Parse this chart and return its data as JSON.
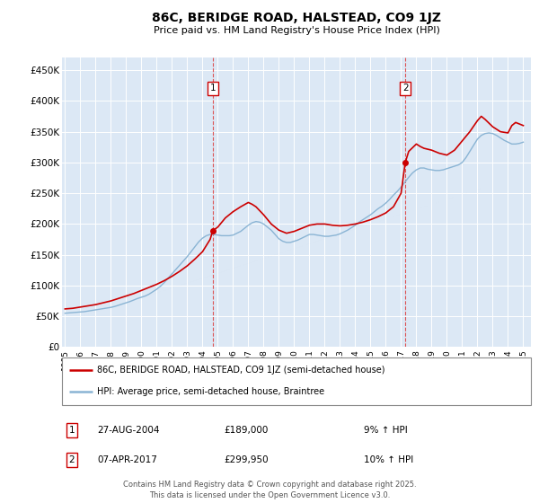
{
  "title": "86C, BERIDGE ROAD, HALSTEAD, CO9 1JZ",
  "subtitle": "Price paid vs. HM Land Registry's House Price Index (HPI)",
  "legend_line1": "86C, BERIDGE ROAD, HALSTEAD, CO9 1JZ (semi-detached house)",
  "legend_line2": "HPI: Average price, semi-detached house, Braintree",
  "annotation1": {
    "num": "1",
    "date": "27-AUG-2004",
    "price": "£189,000",
    "hpi": "9% ↑ HPI",
    "x_year": 2004.67
  },
  "annotation2": {
    "num": "2",
    "date": "07-APR-2017",
    "price": "£299,950",
    "hpi": "10% ↑ HPI",
    "x_year": 2017.27
  },
  "footer": "Contains HM Land Registry data © Crown copyright and database right 2025.\nThis data is licensed under the Open Government Licence v3.0.",
  "price_color": "#cc0000",
  "hpi_color": "#8ab4d4",
  "background_color": "#dce8f5",
  "ylim": [
    0,
    470000
  ],
  "xlim_start": 1994.8,
  "xlim_end": 2025.5,
  "yticks": [
    0,
    50000,
    100000,
    150000,
    200000,
    250000,
    300000,
    350000,
    400000,
    450000
  ],
  "xticks": [
    1995,
    1996,
    1997,
    1998,
    1999,
    2000,
    2001,
    2002,
    2003,
    2004,
    2005,
    2006,
    2007,
    2008,
    2009,
    2010,
    2011,
    2012,
    2013,
    2014,
    2015,
    2016,
    2017,
    2018,
    2019,
    2020,
    2021,
    2022,
    2023,
    2024,
    2025
  ],
  "hpi_x": [
    1995.0,
    1995.25,
    1995.5,
    1995.75,
    1996.0,
    1996.25,
    1996.5,
    1996.75,
    1997.0,
    1997.25,
    1997.5,
    1997.75,
    1998.0,
    1998.25,
    1998.5,
    1998.75,
    1999.0,
    1999.25,
    1999.5,
    1999.75,
    2000.0,
    2000.25,
    2000.5,
    2000.75,
    2001.0,
    2001.25,
    2001.5,
    2001.75,
    2002.0,
    2002.25,
    2002.5,
    2002.75,
    2003.0,
    2003.25,
    2003.5,
    2003.75,
    2004.0,
    2004.25,
    2004.5,
    2004.75,
    2005.0,
    2005.25,
    2005.5,
    2005.75,
    2006.0,
    2006.25,
    2006.5,
    2006.75,
    2007.0,
    2007.25,
    2007.5,
    2007.75,
    2008.0,
    2008.25,
    2008.5,
    2008.75,
    2009.0,
    2009.25,
    2009.5,
    2009.75,
    2010.0,
    2010.25,
    2010.5,
    2010.75,
    2011.0,
    2011.25,
    2011.5,
    2011.75,
    2012.0,
    2012.25,
    2012.5,
    2012.75,
    2013.0,
    2013.25,
    2013.5,
    2013.75,
    2014.0,
    2014.25,
    2014.5,
    2014.75,
    2015.0,
    2015.25,
    2015.5,
    2015.75,
    2016.0,
    2016.25,
    2016.5,
    2016.75,
    2017.0,
    2017.25,
    2017.5,
    2017.75,
    2018.0,
    2018.25,
    2018.5,
    2018.75,
    2019.0,
    2019.25,
    2019.5,
    2019.75,
    2020.0,
    2020.25,
    2020.5,
    2020.75,
    2021.0,
    2021.25,
    2021.5,
    2021.75,
    2022.0,
    2022.25,
    2022.5,
    2022.75,
    2023.0,
    2023.25,
    2023.5,
    2023.75,
    2024.0,
    2024.25,
    2024.5,
    2024.75,
    2025.0
  ],
  "hpi_y": [
    55000,
    55500,
    56000,
    56500,
    57000,
    57500,
    58500,
    59500,
    60500,
    61500,
    62500,
    63500,
    64500,
    66000,
    68000,
    70000,
    72000,
    74000,
    76500,
    79000,
    81000,
    83000,
    86000,
    90000,
    94000,
    99000,
    105000,
    112000,
    119000,
    126000,
    133000,
    140000,
    147000,
    155000,
    163000,
    171000,
    177000,
    181000,
    183000,
    183000,
    182000,
    181000,
    181000,
    181000,
    182000,
    185000,
    188000,
    193000,
    198000,
    202000,
    204000,
    203000,
    200000,
    195000,
    190000,
    183000,
    176000,
    172000,
    170000,
    170000,
    172000,
    174000,
    177000,
    180000,
    183000,
    183000,
    182000,
    181000,
    180000,
    180000,
    181000,
    182000,
    184000,
    187000,
    190000,
    194000,
    198000,
    203000,
    207000,
    211000,
    215000,
    220000,
    225000,
    229000,
    234000,
    240000,
    247000,
    253000,
    260000,
    268000,
    276000,
    283000,
    288000,
    291000,
    291000,
    289000,
    288000,
    287000,
    287000,
    288000,
    290000,
    292000,
    294000,
    296000,
    300000,
    308000,
    318000,
    328000,
    338000,
    344000,
    347000,
    348000,
    347000,
    344000,
    340000,
    336000,
    333000,
    330000,
    330000,
    331000,
    333000
  ],
  "price_curve_x": [
    1995.0,
    1995.5,
    1996.0,
    1996.5,
    1997.0,
    1997.5,
    1998.0,
    1998.5,
    1999.0,
    1999.5,
    2000.0,
    2000.5,
    2001.0,
    2001.5,
    2002.0,
    2002.5,
    2003.0,
    2003.5,
    2004.0,
    2004.5,
    2004.67,
    2005.0,
    2005.5,
    2006.0,
    2006.5,
    2007.0,
    2007.25,
    2007.5,
    2008.0,
    2008.5,
    2009.0,
    2009.5,
    2010.0,
    2010.5,
    2011.0,
    2011.5,
    2012.0,
    2012.5,
    2013.0,
    2013.5,
    2014.0,
    2014.5,
    2015.0,
    2015.5,
    2016.0,
    2016.5,
    2017.0,
    2017.27,
    2017.5,
    2018.0,
    2018.25,
    2018.5,
    2019.0,
    2019.5,
    2020.0,
    2020.5,
    2021.0,
    2021.5,
    2022.0,
    2022.25,
    2022.5,
    2023.0,
    2023.5,
    2024.0,
    2024.25,
    2024.5,
    2025.0
  ],
  "price_curve_y": [
    62000,
    63000,
    65000,
    67000,
    69000,
    72000,
    75000,
    79000,
    83000,
    87000,
    92000,
    97000,
    102000,
    108000,
    115000,
    123000,
    132000,
    143000,
    155000,
    175000,
    189000,
    195000,
    210000,
    220000,
    228000,
    235000,
    232000,
    228000,
    215000,
    200000,
    190000,
    185000,
    188000,
    193000,
    198000,
    200000,
    200000,
    198000,
    197000,
    198000,
    200000,
    203000,
    207000,
    212000,
    218000,
    228000,
    250000,
    299950,
    318000,
    330000,
    326000,
    323000,
    320000,
    315000,
    312000,
    320000,
    335000,
    350000,
    368000,
    375000,
    370000,
    358000,
    350000,
    348000,
    360000,
    365000,
    360000
  ]
}
